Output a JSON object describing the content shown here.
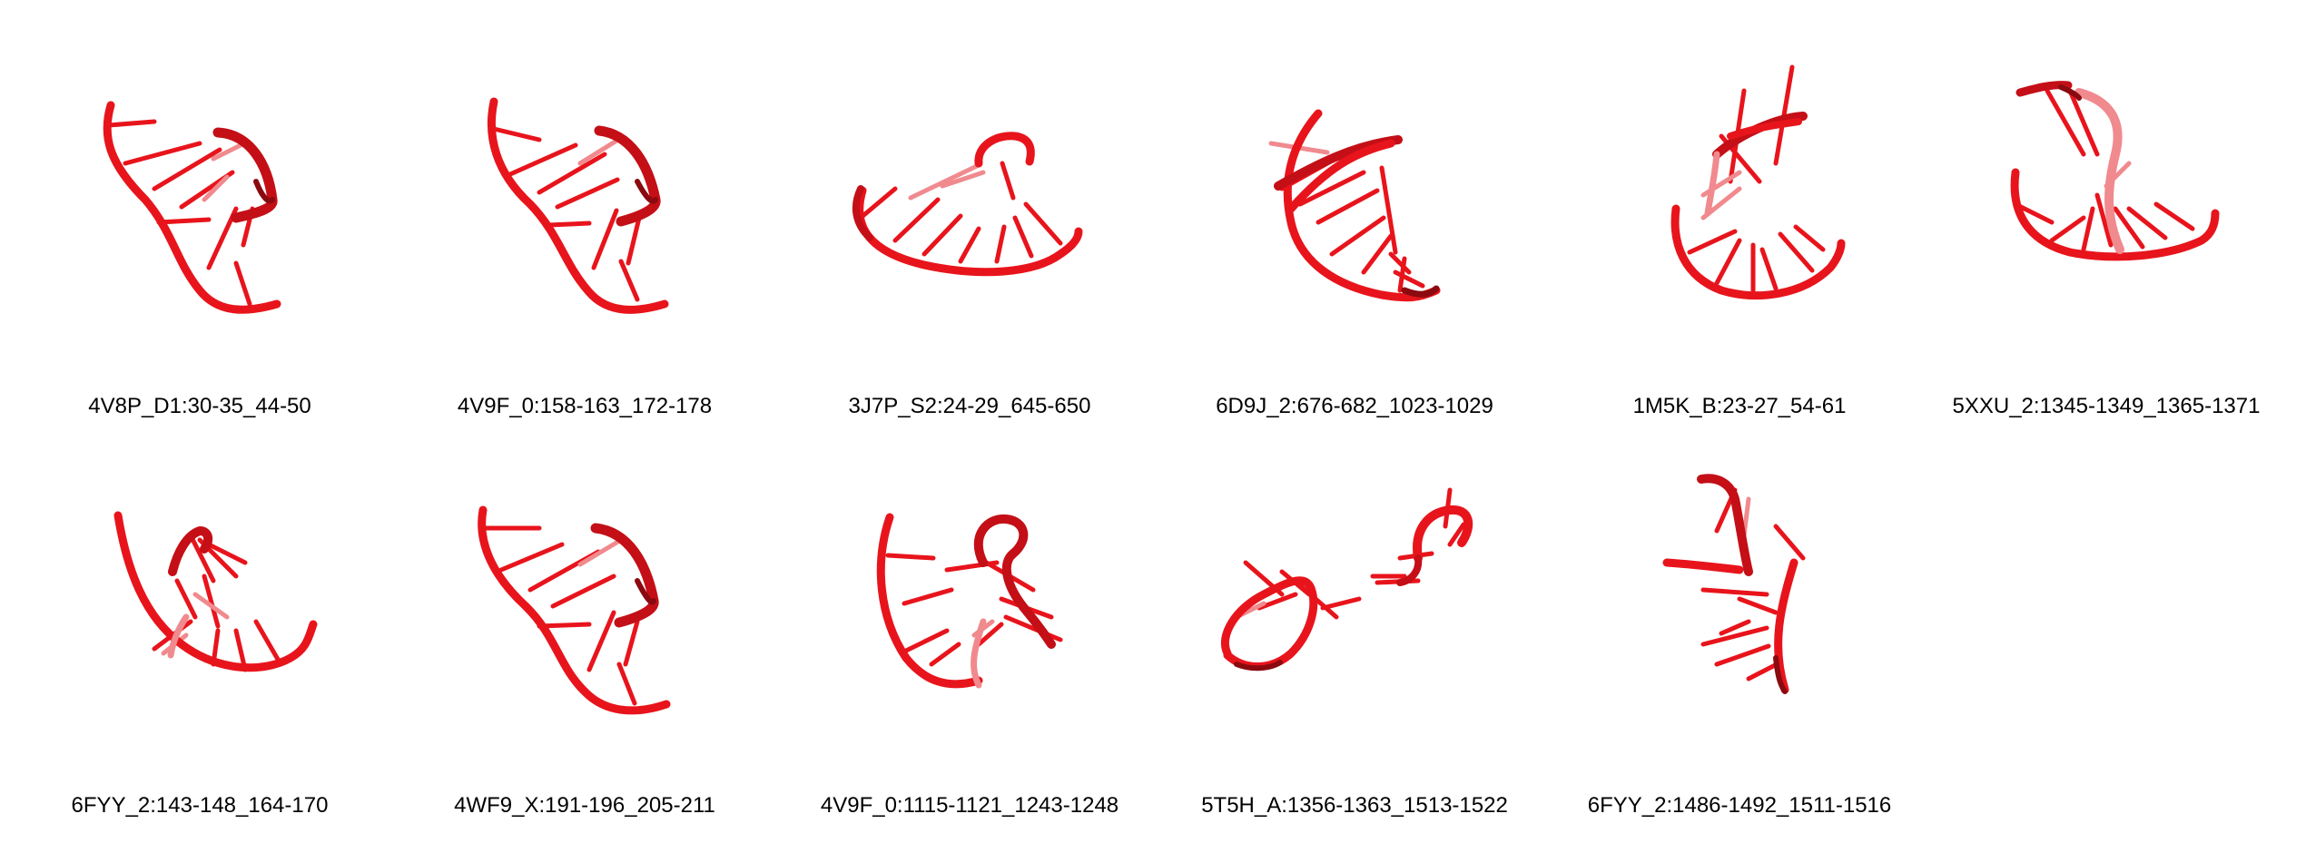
{
  "colors": {
    "strand_main": "#e8141c",
    "strand_dark": "#8a0a10",
    "strand_light": "#f08a8e",
    "background": "#ffffff"
  },
  "structures": [
    {
      "label": "4V8P_D1:30-35_44-50"
    },
    {
      "label": "4V9F_0:158-163_172-178"
    },
    {
      "label": "3J7P_S2:24-29_645-650"
    },
    {
      "label": "6D9J_2:676-682_1023-1029"
    },
    {
      "label": "1M5K_B:23-27_54-61"
    },
    {
      "label": "5XXU_2:1345-1349_1365-1371"
    },
    {
      "label": "6FYY_2:143-148_164-170"
    },
    {
      "label": "4WF9_X:191-196_205-211"
    },
    {
      "label": "4V9F_0:1115-1121_1243-1248"
    },
    {
      "label": "5T5H_A:1356-1363_1513-1522"
    },
    {
      "label": "6FYY_2:1486-1492_1511-1516"
    }
  ]
}
